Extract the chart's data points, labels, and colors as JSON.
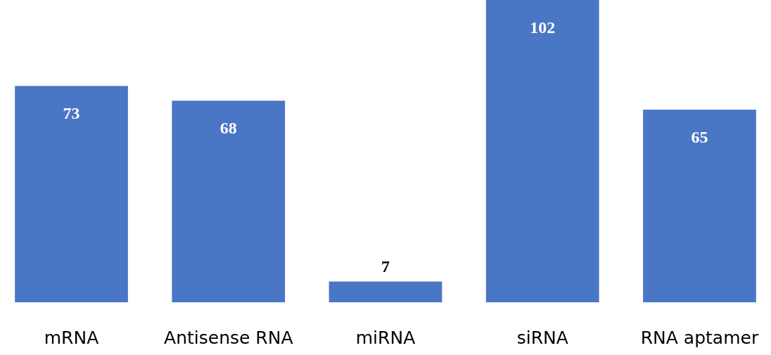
{
  "chart_data": {
    "type": "bar",
    "categories": [
      "mRNA",
      "Antisense RNA",
      "miRNA",
      "siRNA",
      "RNA aptamer"
    ],
    "values": [
      73,
      68,
      7,
      102,
      65
    ],
    "color": "#4a76c6",
    "data_labels": true
  }
}
